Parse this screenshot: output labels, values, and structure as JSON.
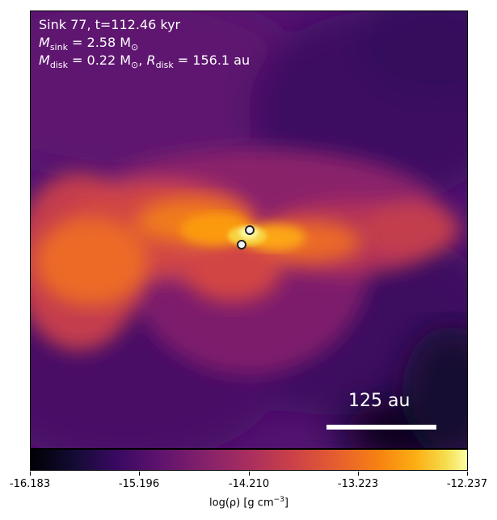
{
  "annotations": {
    "sink_label": "Sink 77, t=112.46 kyr",
    "msink_symbol": "M",
    "msink_sub": "sink",
    "msink_value": " = 2.58 M",
    "msink_sun_sub": "⊙",
    "mdisk_symbol": "M",
    "mdisk_sub": "disk",
    "mdisk_value": " = 0.22 M",
    "mdisk_sun_sub": "⊙",
    "rdisk_prefix": ", ",
    "rdisk_symbol": "R",
    "rdisk_sub": "disk",
    "rdisk_value": " = 156.1 au"
  },
  "scale_bar": {
    "label": "125 au"
  },
  "colormap": "inferno",
  "colorbar": {
    "ticks": [
      "-16.183",
      "-15.196",
      "-14.210",
      "-13.223",
      "-12.237"
    ],
    "label_prefix": "log(ρ) [g cm",
    "label_exp": "−3",
    "label_suffix": "]"
  },
  "sinks": [
    {
      "name": "sink-particle-1"
    },
    {
      "name": "sink-particle-2"
    }
  ]
}
